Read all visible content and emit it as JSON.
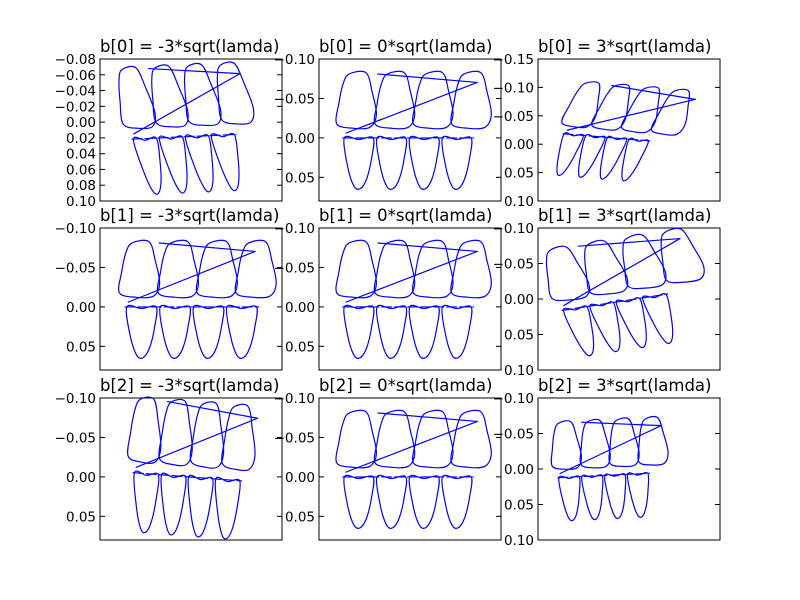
{
  "chart_data": [
    {
      "type": "line",
      "title": "b[0] = -3*sqrt(lamda)",
      "row": 0,
      "col": 0,
      "ytick_labels": [
        "−0.08",
        "−0.06",
        "−0.04",
        "−0.02",
        "0.00",
        "0.02",
        "0.04",
        "0.06",
        "0.08",
        "0.10"
      ],
      "ylim": [
        0.1,
        -0.08
      ],
      "variant": "squeezeLeft"
    },
    {
      "type": "line",
      "title": "b[0] = 0*sqrt(lamda)",
      "row": 0,
      "col": 1,
      "ytick_labels": [
        "−0.10",
        "−0.05",
        "0.00",
        "0.05"
      ],
      "ylim": [
        0.08,
        -0.1
      ],
      "variant": "mean"
    },
    {
      "type": "line",
      "title": "b[0] = 3*sqrt(lamda)",
      "row": 0,
      "col": 2,
      "ytick_labels": [
        "−0.15",
        "−0.10",
        "−0.05",
        "0.00",
        "0.05",
        "0.10"
      ],
      "ylim": [
        0.1,
        -0.15
      ],
      "variant": "tiltRight"
    },
    {
      "type": "line",
      "title": "b[1] = -3*sqrt(lamda)",
      "row": 1,
      "col": 0,
      "ytick_labels": [
        "−0.10",
        "−0.05",
        "0.00",
        "0.05"
      ],
      "ylim": [
        0.08,
        -0.1
      ],
      "variant": "wide"
    },
    {
      "type": "line",
      "title": "b[1] = 0*sqrt(lamda)",
      "row": 1,
      "col": 1,
      "ytick_labels": [
        "−0.10",
        "−0.05",
        "0.00",
        "0.05"
      ],
      "ylim": [
        0.08,
        -0.1
      ],
      "variant": "mean"
    },
    {
      "type": "line",
      "title": "b[1] = 3*sqrt(lamda)",
      "row": 1,
      "col": 2,
      "ytick_labels": [
        "−0.10",
        "−0.05",
        "0.00",
        "0.05",
        "0.10"
      ],
      "ylim": [
        0.1,
        -0.1
      ],
      "variant": "rotated"
    },
    {
      "type": "line",
      "title": "b[2] = -3*sqrt(lamda)",
      "row": 2,
      "col": 0,
      "ytick_labels": [
        "−0.10",
        "−0.05",
        "0.00",
        "0.05"
      ],
      "ylim": [
        0.08,
        -0.1
      ],
      "variant": "tallThin"
    },
    {
      "type": "line",
      "title": "b[2] = 0*sqrt(lamda)",
      "row": 2,
      "col": 1,
      "ytick_labels": [
        "−0.10",
        "−0.05",
        "0.00",
        "0.05"
      ],
      "ylim": [
        0.08,
        -0.1
      ],
      "variant": "mean"
    },
    {
      "type": "line",
      "title": "b[2] = 3*sqrt(lamda)",
      "row": 2,
      "col": 2,
      "ytick_labels": [
        "−0.10",
        "−0.05",
        "0.00",
        "0.05",
        "0.10"
      ],
      "ylim": [
        0.1,
        -0.1
      ],
      "variant": "compact"
    }
  ],
  "colors": {
    "line": "#0000ff",
    "axes": "#000000",
    "background": "#ffffff"
  }
}
